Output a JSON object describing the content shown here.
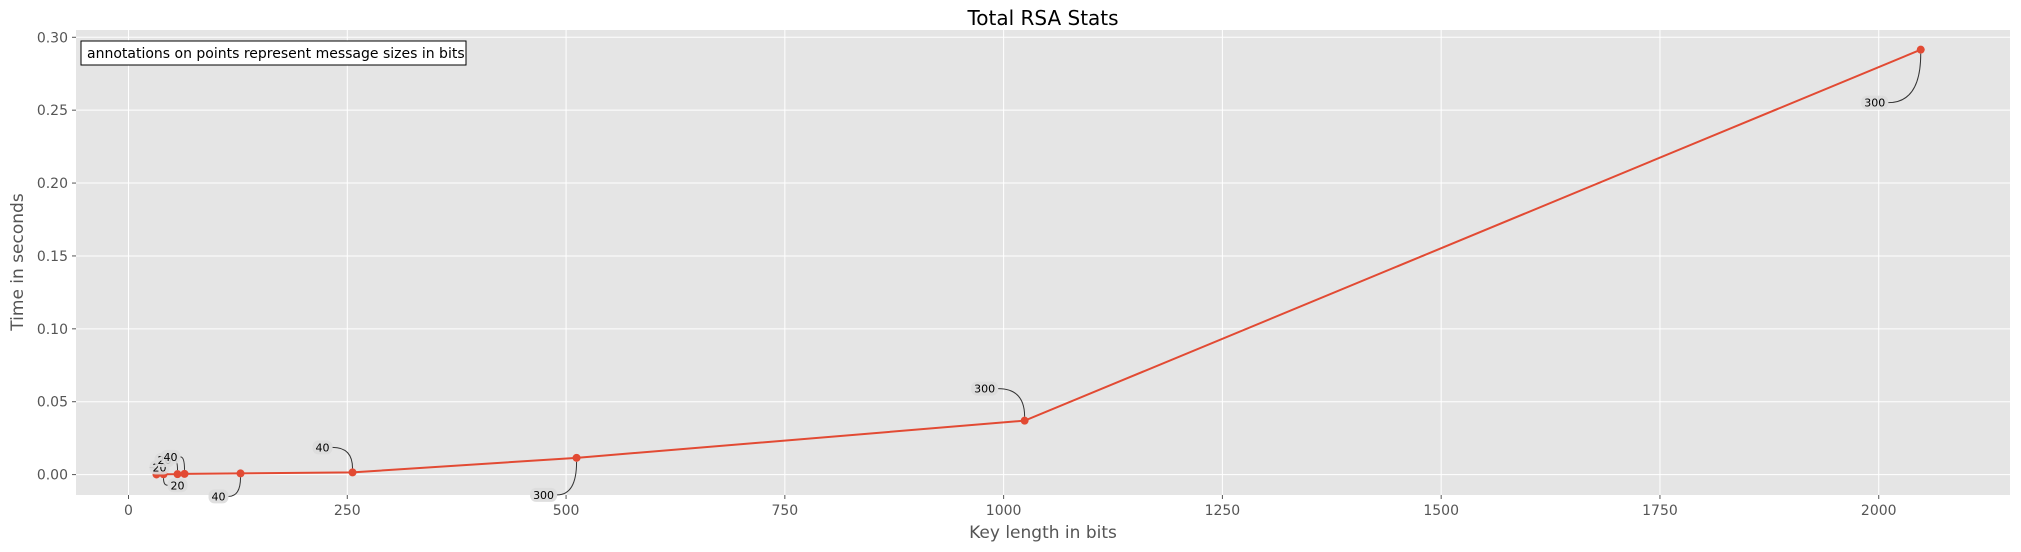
{
  "chart_data": {
    "type": "line",
    "title": "Total RSA Stats",
    "xlabel": "Key length in bits",
    "ylabel": "Time in seconds",
    "xlim": [
      -60,
      2150
    ],
    "ylim": [
      -0.014,
      0.305
    ],
    "xticks": [
      0,
      250,
      500,
      750,
      1000,
      1250,
      1500,
      1750,
      2000
    ],
    "yticks": [
      0.0,
      0.05,
      0.1,
      0.15,
      0.2,
      0.25,
      0.3
    ],
    "xtick_labels": [
      "0",
      "250",
      "500",
      "750",
      "1000",
      "1250",
      "1500",
      "1750",
      "2000"
    ],
    "ytick_labels": [
      "0.00",
      "0.05",
      "0.10",
      "0.15",
      "0.20",
      "0.25",
      "0.30"
    ],
    "grid": true,
    "note": "annotations on points represent message sizes in bits",
    "series": [
      {
        "color": "#E24A33",
        "points": [
          {
            "x": 32,
            "y": 0.0001,
            "label": "20"
          },
          {
            "x": 40,
            "y": 0.0002,
            "label": "20"
          },
          {
            "x": 56,
            "y": 0.0003,
            "label": "20"
          },
          {
            "x": 64,
            "y": 0.0005,
            "label": "40"
          },
          {
            "x": 128,
            "y": 0.0008,
            "label": "40"
          },
          {
            "x": 256,
            "y": 0.0015,
            "label": "40"
          },
          {
            "x": 512,
            "y": 0.0115,
            "label": "300"
          },
          {
            "x": 1024,
            "y": 0.037,
            "label": "300"
          },
          {
            "x": 2048,
            "y": 0.2915,
            "label": "300"
          }
        ]
      }
    ]
  }
}
